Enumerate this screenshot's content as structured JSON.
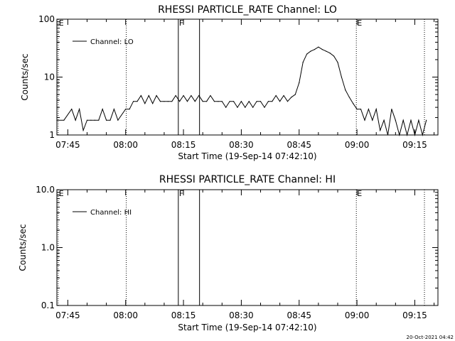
{
  "timestamp": "20-Oct-2021 04:42",
  "chart_data": [
    {
      "type": "line",
      "title": "RHESSI PARTICLE_RATE Channel: LO",
      "xlabel": "Start Time (19-Sep-14 07:42:10)",
      "ylabel": "Counts/sec",
      "yscale": "log",
      "ylim": [
        1,
        100
      ],
      "y_ticks": [
        "1",
        "10",
        "100"
      ],
      "x_ticks": [
        "07:45",
        "08:00",
        "08:15",
        "08:30",
        "08:45",
        "09:00",
        "09:15"
      ],
      "legend": "Channel: LO",
      "legend_position": "top-left",
      "markers": [
        {
          "label": "E",
          "time": "07:42:30",
          "style": "dotted"
        },
        {
          "label": "",
          "time": "08:00:10",
          "style": "dotted"
        },
        {
          "label": "F",
          "time": "08:13:40",
          "style": "solid"
        },
        {
          "label": "",
          "time": "08:19:10",
          "style": "solid"
        },
        {
          "label": "E",
          "time": "08:59:50",
          "style": "dotted"
        },
        {
          "label": "",
          "time": "09:17:30",
          "style": "dotted"
        }
      ],
      "series": [
        {
          "name": "Channel: LO",
          "x": [
            "07:42",
            "07:44",
            "07:46",
            "07:47",
            "07:48",
            "07:49",
            "07:50",
            "07:51",
            "07:52",
            "07:53",
            "07:54",
            "07:55",
            "07:56",
            "07:57",
            "07:58",
            "08:00",
            "08:01",
            "08:02",
            "08:03",
            "08:04",
            "08:05",
            "08:06",
            "08:07",
            "08:08",
            "08:09",
            "08:10",
            "08:11",
            "08:12",
            "08:13",
            "08:14",
            "08:15",
            "08:16",
            "08:17",
            "08:18",
            "08:19",
            "08:20",
            "08:21",
            "08:22",
            "08:23",
            "08:24",
            "08:25",
            "08:26",
            "08:27",
            "08:28",
            "08:29",
            "08:30",
            "08:31",
            "08:32",
            "08:33",
            "08:34",
            "08:35",
            "08:36",
            "08:37",
            "08:38",
            "08:39",
            "08:40",
            "08:41",
            "08:42",
            "08:43",
            "08:44",
            "08:45",
            "08:46",
            "08:47",
            "08:48",
            "08:49",
            "08:50",
            "08:51",
            "08:52",
            "08:53",
            "08:54",
            "08:55",
            "08:56",
            "08:57",
            "08:58",
            "08:59",
            "09:00",
            "09:01",
            "09:02",
            "09:03",
            "09:04",
            "09:05",
            "09:06",
            "09:07",
            "09:08",
            "09:09",
            "09:10",
            "09:11",
            "09:12",
            "09:13",
            "09:14",
            "09:15",
            "09:16",
            "09:17",
            "09:18"
          ],
          "y": [
            1.8,
            1.8,
            2.8,
            1.8,
            2.8,
            1.2,
            1.8,
            1.8,
            1.8,
            1.8,
            2.8,
            1.8,
            1.8,
            2.8,
            1.8,
            2.8,
            2.8,
            3.8,
            3.8,
            4.8,
            3.5,
            4.8,
            3.5,
            4.8,
            3.8,
            3.8,
            3.8,
            3.8,
            4.8,
            3.8,
            4.8,
            3.8,
            4.8,
            3.8,
            4.8,
            3.8,
            3.8,
            4.8,
            3.8,
            3.8,
            3.8,
            3.0,
            3.8,
            3.8,
            3.0,
            3.8,
            3.0,
            3.8,
            3.0,
            3.8,
            3.8,
            3.0,
            3.8,
            3.8,
            4.8,
            3.8,
            4.8,
            3.8,
            4.5,
            5.0,
            8.0,
            18.0,
            25.0,
            28.0,
            30.0,
            33.0,
            30.0,
            28.0,
            26.0,
            23.0,
            18.0,
            10.0,
            6.0,
            4.5,
            3.5,
            2.8,
            2.8,
            1.8,
            2.8,
            1.8,
            2.8,
            1.2,
            1.8,
            1.0,
            2.8,
            1.8,
            1.0,
            1.8,
            1.0,
            1.8,
            1.0,
            1.8,
            1.0,
            1.8
          ]
        }
      ]
    },
    {
      "type": "line",
      "title": "RHESSI PARTICLE_RATE Channel: HI",
      "xlabel": "Start Time (19-Sep-14 07:42:10)",
      "ylabel": "Counts/sec",
      "yscale": "log",
      "ylim": [
        0.1,
        10
      ],
      "y_ticks": [
        "0.1",
        "1.0",
        "10.0"
      ],
      "x_ticks": [
        "07:45",
        "08:00",
        "08:15",
        "08:30",
        "08:45",
        "09:00",
        "09:15"
      ],
      "legend": "Channel: HI",
      "legend_position": "top-left",
      "markers": [
        {
          "label": "E",
          "time": "07:42:30",
          "style": "dotted"
        },
        {
          "label": "",
          "time": "08:00:10",
          "style": "dotted"
        },
        {
          "label": "F",
          "time": "08:13:40",
          "style": "solid"
        },
        {
          "label": "",
          "time": "08:19:10",
          "style": "solid"
        },
        {
          "label": "E",
          "time": "08:59:50",
          "style": "dotted"
        },
        {
          "label": "",
          "time": "09:17:30",
          "style": "dotted"
        }
      ],
      "series": [
        {
          "name": "Channel: HI",
          "x": [],
          "y": []
        }
      ]
    }
  ]
}
